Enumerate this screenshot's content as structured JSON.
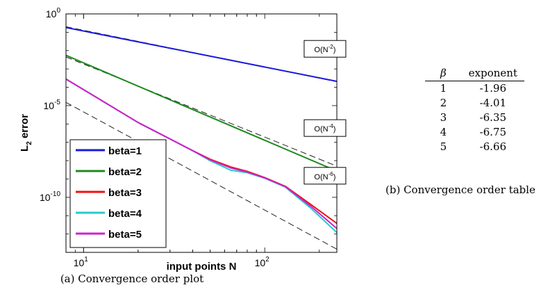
{
  "chart_data": {
    "type": "line",
    "x_scale": "log",
    "y_scale": "log",
    "xlim": [
      8,
      250
    ],
    "ylim": [
      1e-13,
      1
    ],
    "xlabel": "input points N",
    "ylabel_main": "L",
    "ylabel_sub": "2",
    "ylabel_rest": " error",
    "x_ticks": [
      {
        "value": 10,
        "base": "10",
        "exp": "1"
      },
      {
        "value": 100,
        "base": "10",
        "exp": "2"
      }
    ],
    "y_ticks": [
      {
        "value": 1,
        "base": "10",
        "exp": "0"
      },
      {
        "value": 1e-05,
        "base": "10",
        "exp": "-5"
      },
      {
        "value": 1e-10,
        "base": "10",
        "exp": "-10"
      }
    ],
    "legend_position": "bottom-left",
    "series": [
      {
        "name": "beta=1",
        "color": "#1a1adb",
        "x": [
          8,
          250
        ],
        "y": [
          0.18,
          0.00021
        ]
      },
      {
        "name": "beta=2",
        "color": "#1e8a1e",
        "x": [
          8,
          250
        ],
        "y": [
          0.0055,
          2.7e-09
        ]
      },
      {
        "name": "beta=3",
        "color": "#ee1111",
        "x": [
          8,
          20,
          40,
          50,
          65,
          80,
          100,
          130,
          180,
          250
        ],
        "y": [
          0.00028,
          1.2e-06,
          3.5e-08,
          1.2e-08,
          4.5e-09,
          2.6e-09,
          1.2e-09,
          4e-10,
          4e-11,
          3.8e-12
        ]
      },
      {
        "name": "beta=4",
        "color": "#22cccc",
        "x": [
          8,
          20,
          40,
          50,
          65,
          80,
          100,
          130,
          180,
          250
        ],
        "y": [
          0.00028,
          1.2e-06,
          3.5e-08,
          1e-08,
          3e-09,
          2.2e-09,
          1.1e-09,
          3.6e-10,
          2.5e-11,
          1.2e-12
        ]
      },
      {
        "name": "beta=5",
        "color": "#cc22cc",
        "x": [
          8,
          20,
          40,
          50,
          65,
          80,
          100,
          130,
          180,
          250
        ],
        "y": [
          0.00028,
          1.2e-06,
          3.5e-08,
          1.1e-08,
          4e-09,
          2.4e-09,
          1.15e-09,
          3.8e-10,
          3.2e-11,
          2e-12
        ]
      }
    ],
    "reference_lines": [
      {
        "x": [
          8,
          250
        ],
        "y": [
          0.2,
          0.0002
        ],
        "label_pre": "O(N",
        "label_exp": "-2",
        "label_post": ")",
        "label_x": 215,
        "label_y": 0.0125
      },
      {
        "x": [
          8,
          250
        ],
        "y": [
          0.0045,
          5e-09
        ],
        "label_pre": "O(N",
        "label_exp": "-4",
        "label_post": ")",
        "label_x": 215,
        "label_y": 6e-07
      },
      {
        "x": [
          8,
          250
        ],
        "y": [
          1.5e-05,
          1.5e-13
        ],
        "label_pre": "O(N",
        "label_exp": "-6",
        "label_post": ")",
        "label_x": 215,
        "label_y": 1.5e-09
      }
    ]
  },
  "table": {
    "col_symbol": "β",
    "col_exponent": "exponent",
    "rows": [
      {
        "beta": "1",
        "exponent": "-1.96"
      },
      {
        "beta": "2",
        "exponent": "-4.01"
      },
      {
        "beta": "3",
        "exponent": "-6.35"
      },
      {
        "beta": "4",
        "exponent": "-6.75"
      },
      {
        "beta": "5",
        "exponent": "-6.66"
      }
    ]
  },
  "captions": {
    "plot": "(a) Convergence order plot",
    "table": "(b) Convergence order table"
  }
}
